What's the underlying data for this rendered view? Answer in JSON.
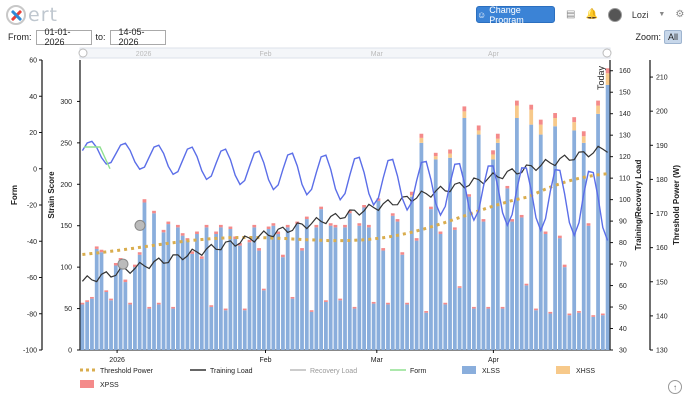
{
  "header": {
    "logo_text": "ert",
    "change_program_label": "Change Program",
    "user_name": "Lozi",
    "icons": [
      "ruler-icon",
      "bell-icon",
      "avatar",
      "chevron-down-icon",
      "settings-icon"
    ]
  },
  "filter": {
    "from_label": "From:",
    "from_value": "01-01-2026",
    "to_label": "to:",
    "to_value": "14-05-2026",
    "zoom_label": "Zoom:",
    "zoom_value": "All"
  },
  "chart_data": {
    "type": "bar",
    "navigator_labels": [
      "2026",
      "Feb",
      "Mar",
      "Apr"
    ],
    "x_tick_labels": [
      "2026",
      "Feb",
      "Mar",
      "Apr"
    ],
    "today_label": "Today",
    "axes": {
      "form": {
        "label": "Form",
        "ticks": [
          -100,
          -80,
          -60,
          -40,
          -20,
          0,
          20,
          40,
          60
        ],
        "range": [
          -100,
          60
        ]
      },
      "strain": {
        "label": "Strain Score",
        "ticks": [
          0,
          50,
          100,
          150,
          200,
          250,
          300
        ],
        "range": [
          0,
          350
        ]
      },
      "load": {
        "label": "Training/Recovery Load",
        "ticks": [
          30,
          40,
          50,
          60,
          70,
          80,
          90,
          100,
          110,
          120,
          130,
          140,
          150,
          160
        ],
        "range": [
          30,
          165
        ]
      },
      "threshold": {
        "label": "Threshold Power (W)",
        "ticks": [
          130,
          140,
          150,
          160,
          170,
          180,
          190,
          200,
          210
        ],
        "range": [
          130,
          215
        ]
      }
    },
    "legend": [
      {
        "name": "Threshold Power",
        "color": "#d9ad4e",
        "style": "dotted"
      },
      {
        "name": "Training Load",
        "color": "#333333",
        "style": "line"
      },
      {
        "name": "Recovery Load",
        "color": "#bbbbbb",
        "style": "line"
      },
      {
        "name": "Form",
        "color": "#90e090",
        "style": "line"
      },
      {
        "name": "XLSS",
        "color": "#8aaedc",
        "style": "box"
      },
      {
        "name": "XHSS",
        "color": "#f7c98a",
        "style": "box"
      },
      {
        "name": "XPSS",
        "color": "#f48a8a",
        "style": "box"
      }
    ],
    "xlss": [
      55,
      58,
      62,
      122,
      118,
      70,
      60,
      102,
      108,
      82,
      55,
      100,
      115,
      178,
      50,
      165,
      55,
      142,
      152,
      50,
      148,
      138,
      132,
      116,
      140,
      110,
      148,
      52,
      140,
      148,
      48,
      146,
      134,
      126,
      48,
      130,
      148,
      120,
      72,
      146,
      150,
      140,
      112,
      148,
      62,
      152,
      120,
      158,
      46,
      148,
      170,
      58,
      150,
      148,
      60,
      148,
      165,
      50,
      150,
      172,
      148,
      56,
      180,
      120,
      55,
      162,
      155,
      115,
      55,
      185,
      132,
      250,
      45,
      170,
      230,
      140,
      55,
      232,
      145,
      75,
      280,
      185,
      50,
      260,
      155,
      50,
      230,
      250,
      50,
      195,
      155,
      280,
      160,
      78,
      272,
      48,
      260,
      140,
      44,
      270,
      135,
      100,
      42,
      265,
      45,
      250,
      150,
      40,
      285,
      42,
      320
    ],
    "xhss": [
      0,
      0,
      0,
      0,
      0,
      0,
      0,
      0,
      0,
      0,
      0,
      0,
      0,
      0,
      0,
      0,
      0,
      0,
      0,
      0,
      0,
      0,
      0,
      0,
      0,
      0,
      0,
      0,
      0,
      0,
      0,
      0,
      0,
      0,
      0,
      0,
      0,
      0,
      0,
      0,
      0,
      0,
      0,
      0,
      0,
      0,
      0,
      0,
      0,
      0,
      0,
      0,
      0,
      0,
      0,
      0,
      0,
      0,
      0,
      0,
      0,
      0,
      0,
      0,
      0,
      0,
      0,
      0,
      0,
      2,
      0,
      6,
      0,
      0,
      4,
      0,
      0,
      5,
      0,
      0,
      8,
      0,
      0,
      5,
      0,
      0,
      6,
      5,
      0,
      0,
      0,
      15,
      0,
      0,
      18,
      0,
      12,
      0,
      0,
      10,
      0,
      0,
      0,
      10,
      0,
      8,
      0,
      0,
      10,
      0,
      14
    ],
    "xpss": [
      2,
      2,
      2,
      3,
      3,
      2,
      2,
      3,
      3,
      3,
      2,
      3,
      3,
      4,
      2,
      3,
      2,
      3,
      3,
      2,
      3,
      3,
      3,
      3,
      3,
      3,
      3,
      2,
      3,
      3,
      2,
      3,
      3,
      3,
      2,
      3,
      3,
      3,
      2,
      3,
      3,
      3,
      3,
      3,
      2,
      3,
      3,
      3,
      2,
      3,
      3,
      2,
      3,
      3,
      2,
      3,
      3,
      2,
      3,
      3,
      3,
      2,
      3,
      3,
      2,
      3,
      3,
      3,
      2,
      4,
      3,
      5,
      2,
      3,
      4,
      3,
      2,
      5,
      3,
      2,
      6,
      3,
      2,
      6,
      3,
      2,
      5,
      6,
      2,
      3,
      3,
      6,
      3,
      2,
      6,
      2,
      6,
      3,
      2,
      6,
      3,
      3,
      2,
      6,
      2,
      6,
      3,
      2,
      6,
      2,
      6
    ]
  }
}
